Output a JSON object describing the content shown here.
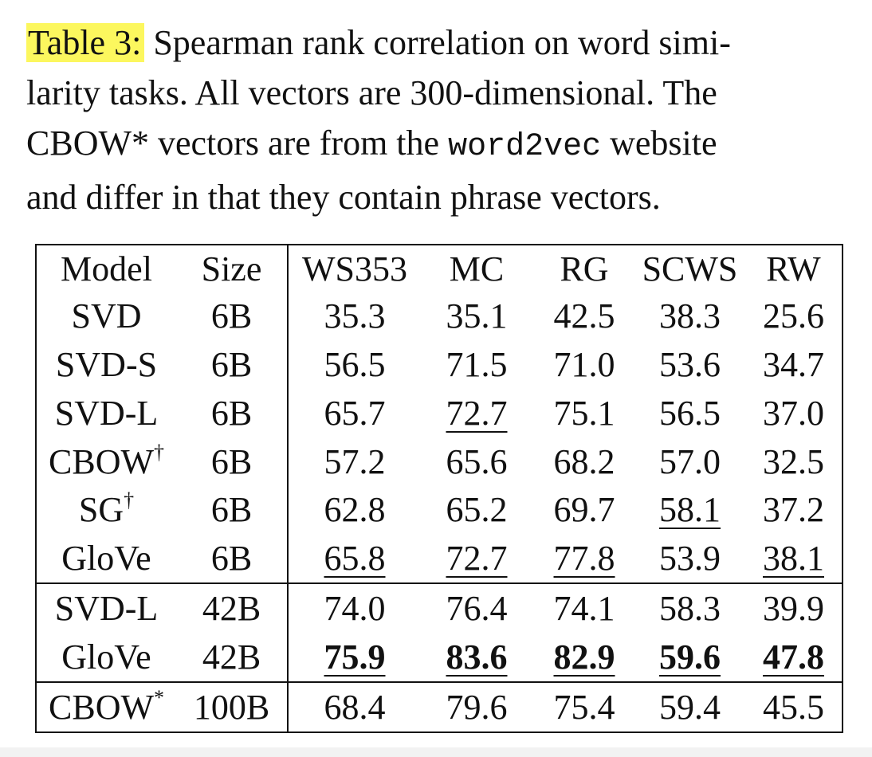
{
  "caption": {
    "label": "Table 3:",
    "line1_rest": " Spearman rank correlation on word simi-",
    "line2": "larity tasks. All vectors are 300-dimensional. The",
    "line3_pre": "CBOW* vectors are from the ",
    "line3_code": "word2vec",
    "line3_post": " website",
    "line4": "and differ in that they contain phrase vectors."
  },
  "table": {
    "headers": [
      "Model",
      "Size",
      "WS353",
      "MC",
      "RG",
      "SCWS",
      "RW"
    ],
    "rows": [
      {
        "model": "SVD",
        "sup": "",
        "size": "6B",
        "values": [
          "35.3",
          "35.1",
          "42.5",
          "38.3",
          "25.6"
        ],
        "underline": [
          false,
          false,
          false,
          false,
          false
        ],
        "bold": [
          false,
          false,
          false,
          false,
          false
        ]
      },
      {
        "model": "SVD-S",
        "sup": "",
        "size": "6B",
        "values": [
          "56.5",
          "71.5",
          "71.0",
          "53.6",
          "34.7"
        ],
        "underline": [
          false,
          false,
          false,
          false,
          false
        ],
        "bold": [
          false,
          false,
          false,
          false,
          false
        ]
      },
      {
        "model": "SVD-L",
        "sup": "",
        "size": "6B",
        "values": [
          "65.7",
          "72.7",
          "75.1",
          "56.5",
          "37.0"
        ],
        "underline": [
          false,
          true,
          false,
          false,
          false
        ],
        "bold": [
          false,
          false,
          false,
          false,
          false
        ]
      },
      {
        "model": "CBOW",
        "sup": "†",
        "size": "6B",
        "values": [
          "57.2",
          "65.6",
          "68.2",
          "57.0",
          "32.5"
        ],
        "underline": [
          false,
          false,
          false,
          false,
          false
        ],
        "bold": [
          false,
          false,
          false,
          false,
          false
        ]
      },
      {
        "model": "SG",
        "sup": "†",
        "size": "6B",
        "values": [
          "62.8",
          "65.2",
          "69.7",
          "58.1",
          "37.2"
        ],
        "underline": [
          false,
          false,
          false,
          true,
          false
        ],
        "bold": [
          false,
          false,
          false,
          false,
          false
        ]
      },
      {
        "model": "GloVe",
        "sup": "",
        "size": "6B",
        "values": [
          "65.8",
          "72.7",
          "77.8",
          "53.9",
          "38.1"
        ],
        "underline": [
          true,
          true,
          true,
          false,
          true
        ],
        "bold": [
          false,
          false,
          false,
          false,
          false
        ]
      },
      {
        "model": "SVD-L",
        "sup": "",
        "size": "42B",
        "values": [
          "74.0",
          "76.4",
          "74.1",
          "58.3",
          "39.9"
        ],
        "underline": [
          false,
          false,
          false,
          false,
          false
        ],
        "bold": [
          false,
          false,
          false,
          false,
          false
        ],
        "group_start": true
      },
      {
        "model": "GloVe",
        "sup": "",
        "size": "42B",
        "values": [
          "75.9",
          "83.6",
          "82.9",
          "59.6",
          "47.8"
        ],
        "underline": [
          true,
          true,
          true,
          true,
          true
        ],
        "bold": [
          true,
          true,
          true,
          true,
          true
        ]
      },
      {
        "model": "CBOW",
        "sup": "*",
        "size": "100B",
        "values": [
          "68.4",
          "79.6",
          "75.4",
          "59.4",
          "45.5"
        ],
        "underline": [
          false,
          false,
          false,
          false,
          false
        ],
        "bold": [
          false,
          false,
          false,
          false,
          false
        ],
        "group_start": true
      }
    ]
  }
}
